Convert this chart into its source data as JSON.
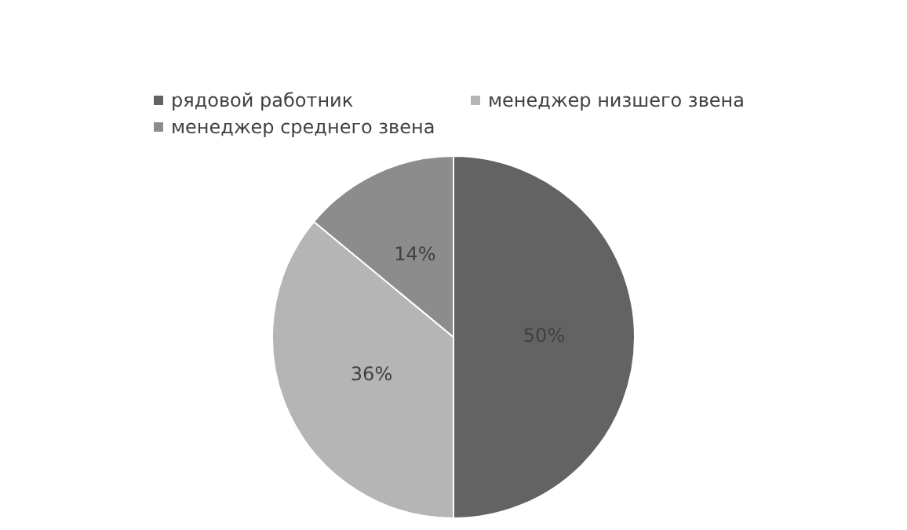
{
  "chart_data": {
    "type": "pie",
    "categories": [
      "рядовой работник",
      "менеджер низшего звена",
      "менеджер среднего звена"
    ],
    "values": [
      50,
      36,
      14
    ],
    "colors": [
      "#636363",
      "#b5b5b5",
      "#8c8c8c"
    ],
    "value_labels": [
      "50%",
      "36%",
      "14%"
    ],
    "legend": "top"
  }
}
